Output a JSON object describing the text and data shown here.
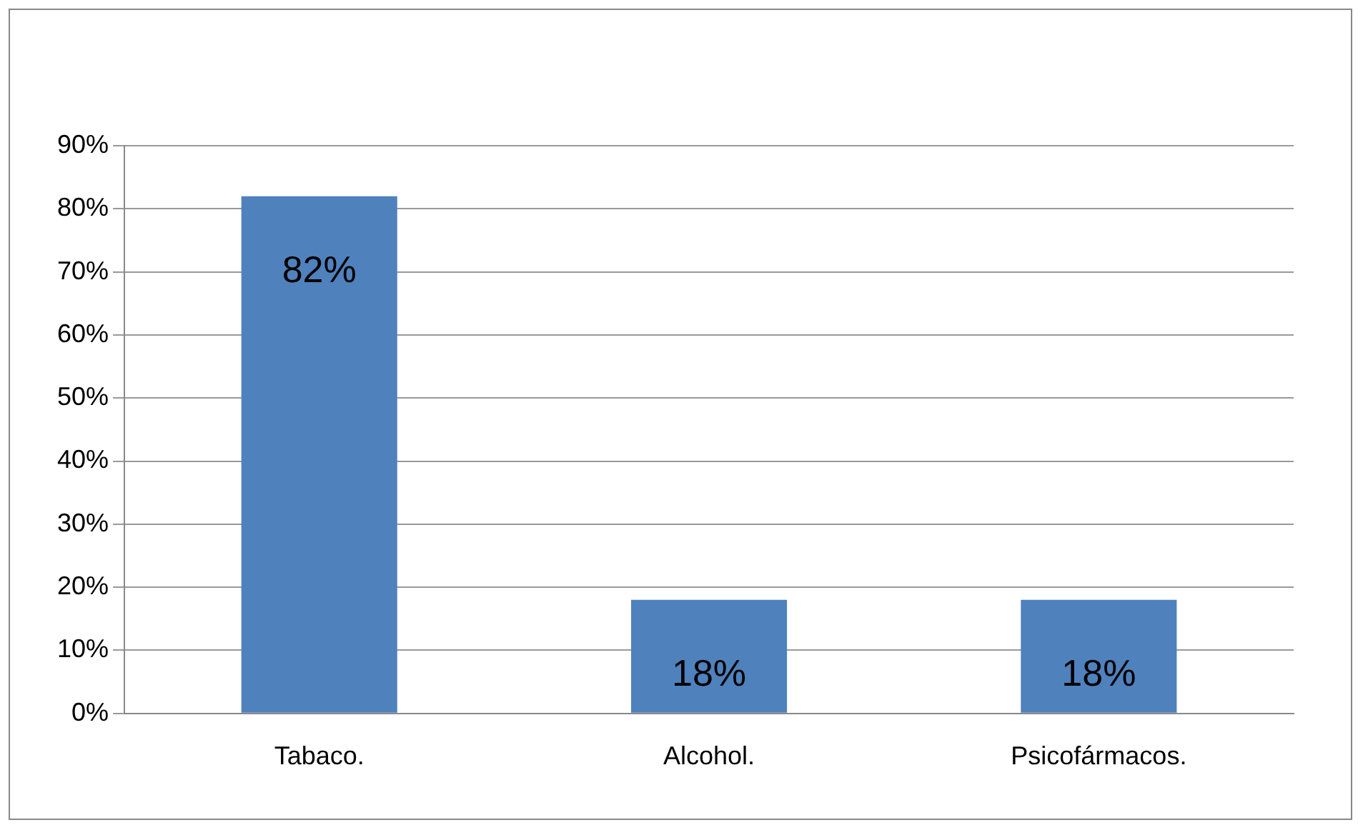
{
  "chart_data": {
    "type": "bar",
    "categories": [
      "Tabaco.",
      "Alcohol.",
      "Psicofármacos."
    ],
    "values": [
      82,
      18,
      18
    ],
    "color": "#4f81bd",
    "value_labels": [
      "82%",
      "18%",
      "18%"
    ],
    "ylim": [
      0,
      90
    ],
    "yticks": [
      {
        "value": 0,
        "label": "0%"
      },
      {
        "value": 10,
        "label": "10%"
      },
      {
        "value": 20,
        "label": "20%"
      },
      {
        "value": 30,
        "label": "30%"
      },
      {
        "value": 40,
        "label": "40%"
      },
      {
        "value": 50,
        "label": "50%"
      },
      {
        "value": 60,
        "label": "60%"
      },
      {
        "value": 70,
        "label": "70%"
      },
      {
        "value": 80,
        "label": "80%"
      },
      {
        "value": 90,
        "label": "90%"
      }
    ],
    "grid": "y",
    "legend": false
  }
}
